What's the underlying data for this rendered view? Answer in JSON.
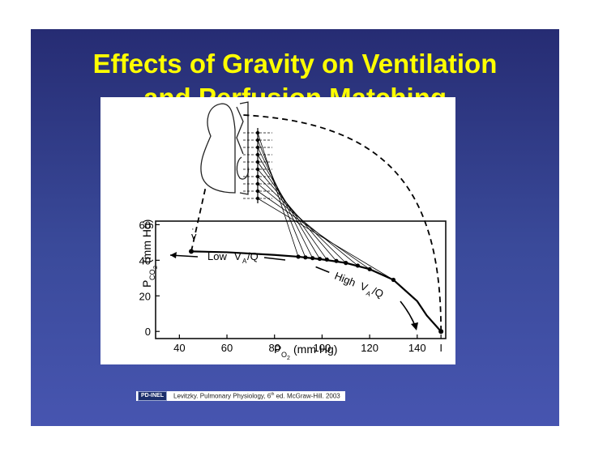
{
  "slide": {
    "title_line1": "Effects of Gravity on Ventilation",
    "title_line2": "and Perfusion Matching"
  },
  "colors": {
    "background": "#2f3a88",
    "title": "#ffff00"
  },
  "chart_data": {
    "type": "line",
    "x_axis": {
      "label": "PO2 (mm Hg)",
      "ticks": [
        "40",
        "60",
        "80",
        "100",
        "120",
        "140",
        "I"
      ],
      "range": [
        30,
        152
      ]
    },
    "y_axis": {
      "label": "PCO2 (mm Hg)",
      "ticks": [
        "0",
        "20",
        "40",
        "60"
      ],
      "range": [
        -4,
        62
      ]
    },
    "annotations": {
      "v_bar": "v",
      "low": "Low",
      "high": "High",
      "vaq_v": "V",
      "vaq_sub": "A",
      "vaq_q": "/Q"
    },
    "series": [
      {
        "values": [
          [
            45,
            45
          ],
          [
            60,
            44.5
          ],
          [
            80,
            43
          ],
          [
            90,
            42
          ],
          [
            100,
            40.5
          ],
          [
            110,
            38.5
          ],
          [
            120,
            35
          ],
          [
            130,
            29
          ],
          [
            140,
            17
          ],
          [
            144,
            9
          ],
          [
            148,
            3
          ],
          [
            150,
            0
          ]
        ]
      }
    ],
    "ventilation_perfusion_points": [
      [
        90,
        42
      ],
      [
        93,
        41.6
      ],
      [
        96,
        41.2
      ],
      [
        99,
        40.8
      ],
      [
        102,
        40.4
      ],
      [
        106,
        39.6
      ],
      [
        110,
        38.5
      ],
      [
        115,
        37
      ],
      [
        120,
        35
      ],
      [
        130,
        29
      ]
    ]
  },
  "citation": {
    "badge": "PD-INEL",
    "text": "Levitzky. Pulmonary Physiology, 6",
    "superscript": "th",
    "text_after": " ed. McGraw-Hill. 2003"
  }
}
